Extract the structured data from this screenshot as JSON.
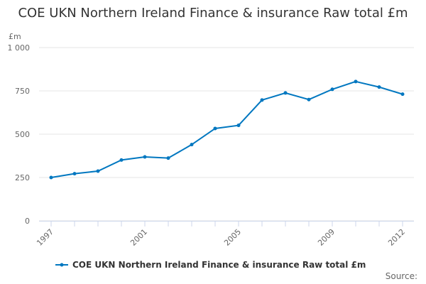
{
  "chart_data": {
    "type": "line",
    "title": "COE UKN Northern Ireland Finance & insurance Raw total £m",
    "ylabel": "£m",
    "xlabel": "",
    "x": [
      1997,
      1998,
      1999,
      2000,
      2001,
      2002,
      2003,
      2004,
      2005,
      2006,
      2007,
      2008,
      2009,
      2010,
      2011,
      2012
    ],
    "series": [
      {
        "name": "COE UKN Northern Ireland Finance & insurance Raw total £m",
        "color": "#0077c0",
        "values": [
          250,
          272,
          287,
          351,
          369,
          362,
          440,
          533,
          551,
          697,
          738,
          700,
          759,
          804,
          772,
          731
        ]
      }
    ],
    "ylim": [
      0,
      1000
    ],
    "yticks": [
      0,
      250,
      500,
      750,
      1000
    ],
    "ytick_labels": [
      "0",
      "250",
      "500",
      "750",
      "1 000"
    ],
    "xtick_labels": [
      "1997",
      "2001",
      "2005",
      "2009",
      "2012"
    ],
    "grid": true,
    "legend": "bottom",
    "source": "Source:"
  }
}
